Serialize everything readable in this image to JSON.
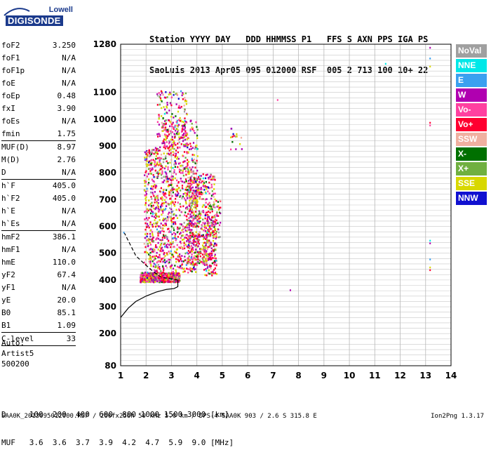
{
  "logo": {
    "top": "Lowell",
    "main": "DIGISONDE"
  },
  "header": {
    "line1": "Station YYYY DAY   DDD HHMMSS P1   FFS S AXN PPS IGA PS",
    "line2": "SaoLuis 2013 Apr05 095 012000 RSF  005 2 713 100 10+ 22"
  },
  "params": [
    {
      "label": "foF2",
      "value": "3.250"
    },
    {
      "label": "foF1",
      "value": "N/A"
    },
    {
      "label": "foF1p",
      "value": "N/A"
    },
    {
      "label": "foE",
      "value": "N/A"
    },
    {
      "label": "foEp",
      "value": "0.48"
    },
    {
      "label": "fxI",
      "value": "3.90"
    },
    {
      "label": "foEs",
      "value": "N/A"
    },
    {
      "label": "fmin",
      "value": "1.75"
    },
    {
      "sep": true
    },
    {
      "label": "MUF(D)",
      "value": "8.97"
    },
    {
      "label": "M(D)",
      "value": "2.76"
    },
    {
      "label": "D",
      "value": "N/A"
    },
    {
      "sep": true
    },
    {
      "label": "h`F",
      "value": "405.0"
    },
    {
      "label": "h`F2",
      "value": "405.0"
    },
    {
      "label": "h`E",
      "value": "N/A"
    },
    {
      "label": "h`Es",
      "value": "N/A"
    },
    {
      "sep": true
    },
    {
      "label": "hmF2",
      "value": "386.1"
    },
    {
      "label": "hmF1",
      "value": "N/A"
    },
    {
      "label": "hmE",
      "value": "110.0"
    },
    {
      "label": "yF2",
      "value": "67.4"
    },
    {
      "label": "yF1",
      "value": "N/A"
    },
    {
      "label": "yE",
      "value": "20.0"
    },
    {
      "label": "B0",
      "value": "85.1"
    },
    {
      "label": "B1",
      "value": "1.09"
    },
    {
      "sep": true
    },
    {
      "label": "C-level",
      "value": "33"
    },
    {
      "sep": true
    }
  ],
  "auto": {
    "line1": "Auto:",
    "line2": "Artist5",
    "line3": "500200"
  },
  "bottom": {
    "d_row": "D     100  200  400  600  800 1000 1500 3000 [km]",
    "muf_row": "MUF   3.6  3.6  3.7  3.9  4.2  4.7  5.9  9.0 [MHz]"
  },
  "footer": "SAA0K_2013095012000.RSF / 260fx256h 50 kHz 5.0 km / DPS-4 SAA0K 903 / 2.6 S 315.8 E",
  "version": "Ion2Png 1.3.17",
  "legend": [
    {
      "label": "NoVal",
      "color": "#a0a0a0"
    },
    {
      "label": "NNE",
      "color": "#00e8e8"
    },
    {
      "label": "E",
      "color": "#3aa0f0"
    },
    {
      "label": "W",
      "color": "#b000b0"
    },
    {
      "label": "Vo-",
      "color": "#ff40a0"
    },
    {
      "label": "Vo+",
      "color": "#ff0030"
    },
    {
      "label": "SSW",
      "color": "#f0b0a0"
    },
    {
      "label": "X-",
      "color": "#007000"
    },
    {
      "label": "X+",
      "color": "#70b040"
    },
    {
      "label": "SSE",
      "color": "#d8d800"
    },
    {
      "label": "NNW",
      "color": "#1010d0"
    }
  ],
  "chart_data": {
    "type": "scatter",
    "x_ticks": [
      1,
      2,
      3,
      4,
      5,
      6,
      7,
      8,
      9,
      10,
      11,
      12,
      13,
      14
    ],
    "y_ticks": [
      80,
      200,
      300,
      400,
      500,
      600,
      700,
      800,
      900,
      1000,
      1100,
      1280
    ],
    "xlim": [
      1,
      14
    ],
    "ylim": [
      80,
      1280
    ],
    "grid": true,
    "trace_profile": {
      "x": [
        1.0,
        1.3,
        1.6,
        2.0,
        2.4,
        2.8,
        3.1,
        3.25,
        3.25
      ],
      "y": [
        260,
        295,
        320,
        340,
        355,
        365,
        368,
        375,
        400
      ]
    },
    "trace_upper": {
      "x": [
        3.25,
        3.0,
        2.6,
        2.3,
        2.0,
        1.6,
        1.15
      ],
      "y": [
        400,
        405,
        410,
        430,
        455,
        490,
        575
      ]
    },
    "clusters": [
      {
        "xmin": 1.75,
        "xmax": 3.3,
        "ymin": 395,
        "ymax": 430,
        "n": 700
      },
      {
        "xmin": 1.9,
        "xmax": 2.6,
        "ymin": 430,
        "ymax": 900,
        "n": 400
      },
      {
        "xmin": 2.6,
        "xmax": 4.0,
        "ymin": 430,
        "ymax": 1000,
        "n": 800
      },
      {
        "xmin": 2.4,
        "xmax": 3.6,
        "ymin": 900,
        "ymax": 1110,
        "n": 160
      },
      {
        "xmin": 3.6,
        "xmax": 4.7,
        "ymin": 460,
        "ymax": 800,
        "n": 500
      },
      {
        "xmin": 4.2,
        "xmax": 4.75,
        "ymin": 420,
        "ymax": 620,
        "n": 150
      },
      {
        "xmin": 4.6,
        "xmax": 4.9,
        "ymin": 560,
        "ymax": 700,
        "n": 40
      },
      {
        "xmin": 5.3,
        "xmax": 5.8,
        "ymin": 890,
        "ymax": 970,
        "n": 15
      }
    ],
    "isolated_points": [
      {
        "x": 13.15,
        "y": 1270
      },
      {
        "x": 13.15,
        "y": 1230
      },
      {
        "x": 13.15,
        "y": 1200
      },
      {
        "x": 13.15,
        "y": 990
      },
      {
        "x": 13.15,
        "y": 980
      },
      {
        "x": 13.15,
        "y": 550
      },
      {
        "x": 13.15,
        "y": 540
      },
      {
        "x": 13.15,
        "y": 480
      },
      {
        "x": 13.15,
        "y": 450
      },
      {
        "x": 13.15,
        "y": 440
      },
      {
        "x": 7.15,
        "y": 1075
      },
      {
        "x": 11.4,
        "y": 1210
      },
      {
        "x": 7.65,
        "y": 365
      },
      {
        "x": 1.1,
        "y": 580
      }
    ]
  }
}
